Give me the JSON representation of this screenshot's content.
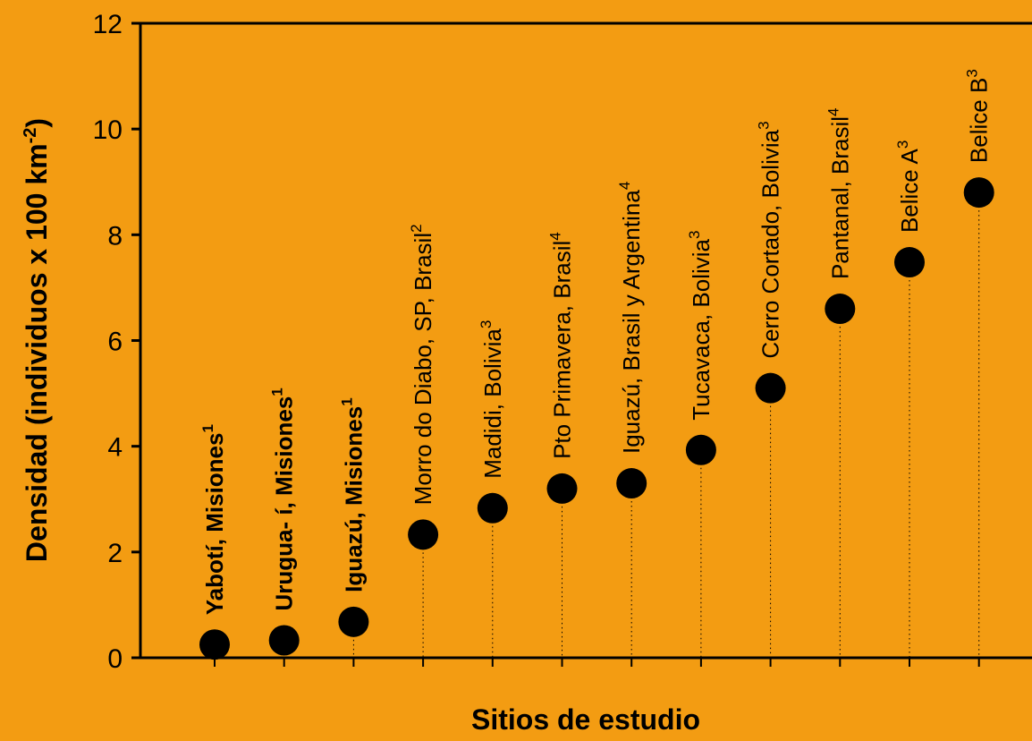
{
  "chart_data": {
    "type": "scatter",
    "title": "",
    "xlabel": "Sitios de estudio",
    "ylabel_main": "Densidad  (individuos x 100 km",
    "ylabel_sup": "-2",
    "ylabel_end": ")",
    "ylim": [
      0,
      12
    ],
    "yticks": [
      0,
      2,
      4,
      6,
      8,
      10,
      12
    ],
    "grid": false,
    "legend": "none",
    "marker_color": "#000000",
    "background_color": "#F39C12",
    "points": [
      {
        "label": "Yabotí, Misiones",
        "sup": "1",
        "bold": true,
        "value": 0.25
      },
      {
        "label": "Urugua- í, Misiones",
        "sup": "1",
        "bold": true,
        "value": 0.33
      },
      {
        "label": "Iguazú, Misiones",
        "sup": "1",
        "bold": true,
        "value": 0.68
      },
      {
        "label": "Morro do Diabo, SP, Brasil",
        "sup": "2",
        "bold": false,
        "value": 2.33
      },
      {
        "label": "Madidi, Bolivia",
        "sup": "3",
        "bold": false,
        "value": 2.83
      },
      {
        "label": "Pto Primavera, Brasil",
        "sup": "4",
        "bold": false,
        "value": 3.2
      },
      {
        "label": "Iguazú, Brasil y Argentina",
        "sup": "4",
        "bold": false,
        "value": 3.3
      },
      {
        "label": "Tucavaca, Bolivia",
        "sup": "3",
        "bold": false,
        "value": 3.93
      },
      {
        "label": "Cerro Cortado, Bolivia",
        "sup": "3",
        "bold": false,
        "value": 5.1
      },
      {
        "label": "Pantanal, Brasil",
        "sup": "4",
        "bold": false,
        "value": 6.6
      },
      {
        "label": "Belice A",
        "sup": "3",
        "bold": false,
        "value": 7.48
      },
      {
        "label": "Belice B",
        "sup": "3",
        "bold": false,
        "value": 8.8
      }
    ]
  }
}
